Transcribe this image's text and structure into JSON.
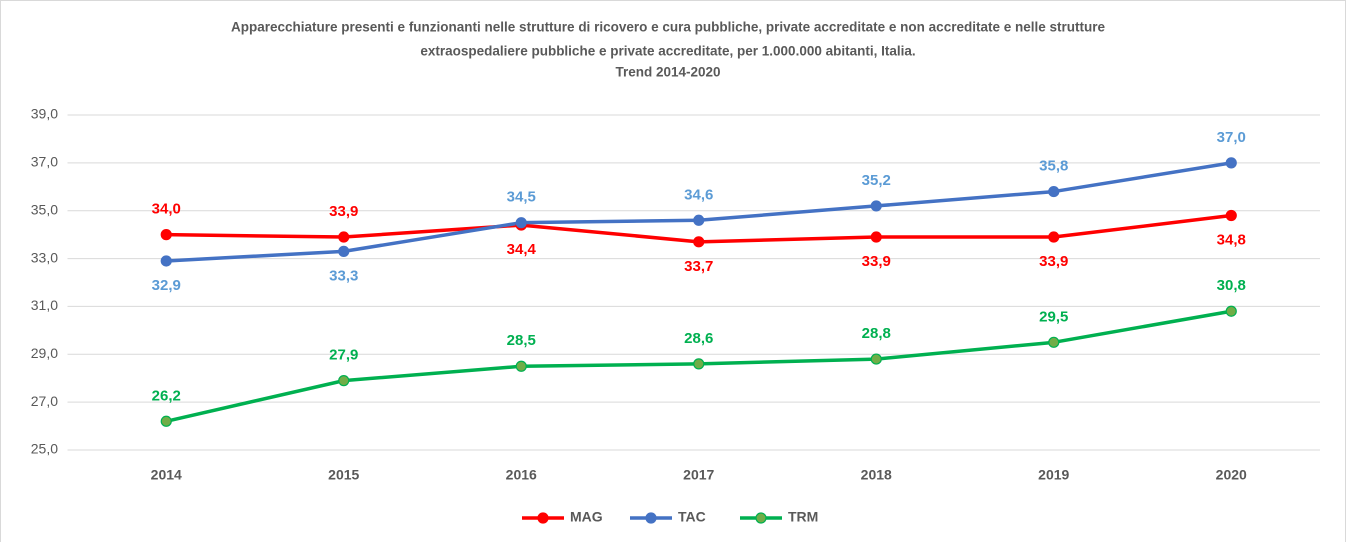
{
  "chart_data": {
    "type": "line",
    "title": [
      "Apparecchiature presenti e funzionanti nelle strutture di ricovero e cura pubbliche, private accreditate e non accreditate e nelle strutture",
      "extraospedaliere pubbliche e private accreditate, per 1.000.000 abitanti, Italia.",
      "Trend 2014-2020"
    ],
    "categories": [
      "2014",
      "2015",
      "2016",
      "2017",
      "2018",
      "2019",
      "2020"
    ],
    "series": [
      {
        "name": "MAG",
        "color": "#ff0000",
        "marker_fill": "#ff0000",
        "label_color": "#ff0000",
        "values": [
          34.0,
          33.9,
          34.4,
          33.7,
          33.9,
          33.9,
          34.8
        ],
        "value_labels": [
          "34,0",
          "33,9",
          "34,4",
          "33,7",
          "33,9",
          "33,9",
          "34,8"
        ]
      },
      {
        "name": "TAC",
        "color": "#4472c4",
        "marker_fill": "#4472c4",
        "label_color": "#5b9bd5",
        "values": [
          32.9,
          33.3,
          34.5,
          34.6,
          35.2,
          35.8,
          37.0
        ],
        "value_labels": [
          "32,9",
          "33,3",
          "34,5",
          "34,6",
          "35,2",
          "35,8",
          "37,0"
        ]
      },
      {
        "name": "TRM",
        "color": "#00b050",
        "marker_fill": "#70ad47",
        "label_color": "#00b050",
        "values": [
          26.2,
          27.9,
          28.5,
          28.6,
          28.8,
          29.5,
          30.8
        ],
        "value_labels": [
          "26,2",
          "27,9",
          "28,5",
          "28,6",
          "28,8",
          "29,5",
          "30,8"
        ]
      }
    ],
    "ylim": [
      25,
      39
    ],
    "yticks": [
      {
        "value": 25,
        "label": "25,0"
      },
      {
        "value": 27,
        "label": "27,0"
      },
      {
        "value": 29,
        "label": "29,0"
      },
      {
        "value": 31,
        "label": "31,0"
      },
      {
        "value": 33,
        "label": "33,0"
      },
      {
        "value": 35,
        "label": "35,0"
      },
      {
        "value": 37,
        "label": "37,0"
      },
      {
        "value": 39,
        "label": "39,0"
      }
    ],
    "grid": true,
    "legend": "bottom"
  }
}
